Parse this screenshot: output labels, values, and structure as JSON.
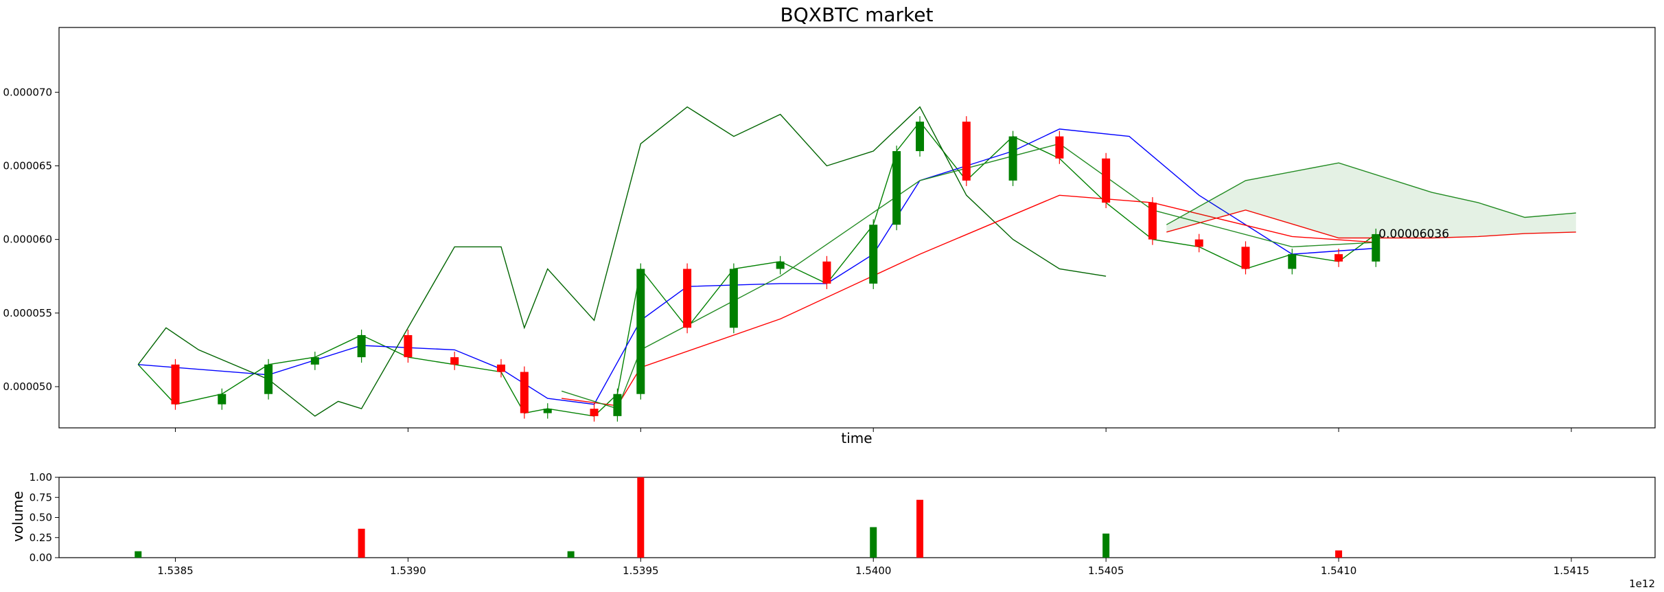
{
  "chart_data": [
    {
      "type": "candlestick",
      "title": "BQXBTC market",
      "xlabel": "time",
      "ylabel": "",
      "xlim": [
        1538250000000.0,
        1541680000000.0
      ],
      "ylim": [
        4.72e-05,
        7.44e-05
      ],
      "yticks": [
        5e-05,
        5.5e-05,
        6e-05,
        6.5e-05,
        7e-05
      ],
      "ytick_labels": [
        "0.000050",
        "0.000055",
        "0.000060",
        "0.000065",
        "0.000070"
      ],
      "xticks": [
        1538500000000.0,
        1539000000000.0,
        1539500000000.0,
        1540000000000.0,
        1540500000000.0,
        1541000000000.0,
        1541500000000.0
      ],
      "last_price_label": "0.00006036",
      "last_price_time": 1541080000000.0,
      "series": [
        {
          "name": "close",
          "times": [
            1538420000000.0,
            1538500000000.0,
            1538600000000.0,
            1538700000000.0,
            1538800000000.0,
            1538900000000.0,
            1539000000000.0,
            1539100000000.0,
            1539200000000.0,
            1539250000000.0,
            1539300000000.0,
            1539400000000.0,
            1539450000000.0,
            1539500000000.0,
            1539600000000.0,
            1539700000000.0,
            1539800000000.0,
            1539900000000.0,
            1540000000000.0,
            1540050000000.0,
            1540100000000.0,
            1540200000000.0,
            1540300000000.0,
            1540400000000.0,
            1540500000000.0,
            1540600000000.0,
            1540700000000.0,
            1540800000000.0,
            1540900000000.0,
            1541000000000.0,
            1541080000000.0
          ],
          "values": [
            5.15e-05,
            4.88e-05,
            4.95e-05,
            5.15e-05,
            5.2e-05,
            5.35e-05,
            5.2e-05,
            5.15e-05,
            5.1e-05,
            4.82e-05,
            4.85e-05,
            4.8e-05,
            4.95e-05,
            5.8e-05,
            5.4e-05,
            5.8e-05,
            5.85e-05,
            5.7e-05,
            6.1e-05,
            6.6e-05,
            6.8e-05,
            6.4e-05,
            6.7e-05,
            6.55e-05,
            6.25e-05,
            6e-05,
            5.95e-05,
            5.8e-05,
            5.9e-05,
            5.85e-05,
            6.036e-05
          ]
        },
        {
          "name": "blue line",
          "color": "#0000ff",
          "times": [
            1538420000000.0,
            1538700000000.0,
            1538900000000.0,
            1539100000000.0,
            1539200000000.0,
            1539300000000.0,
            1539400000000.0,
            1539500000000.0,
            1539600000000.0,
            1539800000000.0,
            1539900000000.0,
            1540000000000.0,
            1540100000000.0,
            1540200000000.0,
            1540300000000.0,
            1540400000000.0,
            1540550000000.0,
            1540700000000.0,
            1540900000000.0,
            1541080000000.0
          ],
          "values": [
            5.15e-05,
            5.08e-05,
            5.28e-05,
            5.25e-05,
            5.12e-05,
            4.92e-05,
            4.88e-05,
            5.45e-05,
            5.68e-05,
            5.7e-05,
            5.7e-05,
            5.9e-05,
            6.4e-05,
            6.5e-05,
            6.6e-05,
            6.75e-05,
            6.7e-05,
            6.3e-05,
            5.9e-05,
            5.94e-05
          ]
        },
        {
          "name": "dark green line",
          "color": "#006400",
          "times": [
            1538420000000.0,
            1538480000000.0,
            1538550000000.0,
            1538700000000.0,
            1538800000000.0,
            1538850000000.0,
            1538900000000.0,
            1539100000000.0,
            1539200000000.0,
            1539250000000.0,
            1539300000000.0,
            1539400000000.0,
            1539500000000.0,
            1539600000000.0,
            1539700000000.0,
            1539800000000.0,
            1539900000000.0,
            1540000000000.0,
            1540100000000.0,
            1540200000000.0,
            1540300000000.0,
            1540400000000.0,
            1540500000000.0
          ],
          "values": [
            5.15e-05,
            5.4e-05,
            5.25e-05,
            5.05e-05,
            4.8e-05,
            4.9e-05,
            4.85e-05,
            5.95e-05,
            5.95e-05,
            5.4e-05,
            5.8e-05,
            5.45e-05,
            6.65e-05,
            6.9e-05,
            6.7e-05,
            6.85e-05,
            6.5e-05,
            6.6e-05,
            6.9e-05,
            6.3e-05,
            6e-05,
            5.8e-05,
            5.75e-05
          ]
        },
        {
          "name": "upper band (red)",
          "color": "#ff0000",
          "times": [
            1539330000000.0,
            1539450000000.0,
            1539500000000.0,
            1539800000000.0,
            1540100000000.0,
            1540400000000.0,
            1540600000000.0,
            1540900000000.0,
            1541080000000.0
          ],
          "values": [
            4.92e-05,
            4.87e-05,
            5.13e-05,
            5.46e-05,
            5.9e-05,
            6.3e-05,
            6.25e-05,
            6.02e-05,
            5.98e-05
          ]
        },
        {
          "name": "lower band (green)",
          "color": "#228b22",
          "times": [
            1539330000000.0,
            1539450000000.0,
            1539500000000.0,
            1539800000000.0,
            1540100000000.0,
            1540400000000.0,
            1540600000000.0,
            1540900000000.0,
            1541080000000.0
          ],
          "values": [
            4.97e-05,
            4.85e-05,
            5.25e-05,
            5.75e-05,
            6.4e-05,
            6.65e-05,
            6.2e-05,
            5.95e-05,
            5.98e-05
          ]
        },
        {
          "name": "cloud upper",
          "color": "#228b22",
          "times": [
            1540630000000.0,
            1540800000000.0,
            1541000000000.0,
            1541200000000.0,
            1541300000000.0,
            1541400000000.0,
            1541510000000.0
          ],
          "values": [
            6.1e-05,
            6.4e-05,
            6.52e-05,
            6.32e-05,
            6.25e-05,
            6.15e-05,
            6.18e-05
          ]
        },
        {
          "name": "cloud lower",
          "color": "#ff0000",
          "times": [
            1540630000000.0,
            1540800000000.0,
            1541000000000.0,
            1541200000000.0,
            1541300000000.0,
            1541400000000.0,
            1541510000000.0
          ],
          "values": [
            6.05e-05,
            6.2e-05,
            6.01e-05,
            6.01e-05,
            6.02e-05,
            6.04e-05,
            6.05e-05
          ]
        }
      ]
    },
    {
      "type": "bar",
      "title": "",
      "xlabel": "",
      "ylabel": "volume",
      "ylim": [
        0,
        1.0
      ],
      "yticks": [
        0,
        0.25,
        0.5,
        0.75,
        1.0
      ],
      "ytick_labels": [
        "0.00",
        "0.25",
        "0.50",
        "0.75",
        "1.00"
      ],
      "xticks": [
        1538500000000.0,
        1539000000000.0,
        1539500000000.0,
        1540000000000.0,
        1540500000000.0,
        1541000000000.0,
        1541500000000.0
      ],
      "xtick_labels": [
        "1.5385",
        "1.5390",
        "1.5395",
        "1.5400",
        "1.5405",
        "1.5410",
        "1.5415"
      ],
      "offset_label": "1e12",
      "colors": {
        "up": "#008000",
        "down": "#ff0000"
      },
      "series": [
        {
          "name": "volume",
          "times": [
            1538420000000.0,
            1538900000000.0,
            1539350000000.0,
            1539500000000.0,
            1540000000000.0,
            1540100000000.0,
            1540500000000.0,
            1541000000000.0
          ],
          "values": [
            0.08,
            0.36,
            0.08,
            1.0,
            0.38,
            0.72,
            0.3,
            0.09
          ]
        }
      ]
    }
  ]
}
